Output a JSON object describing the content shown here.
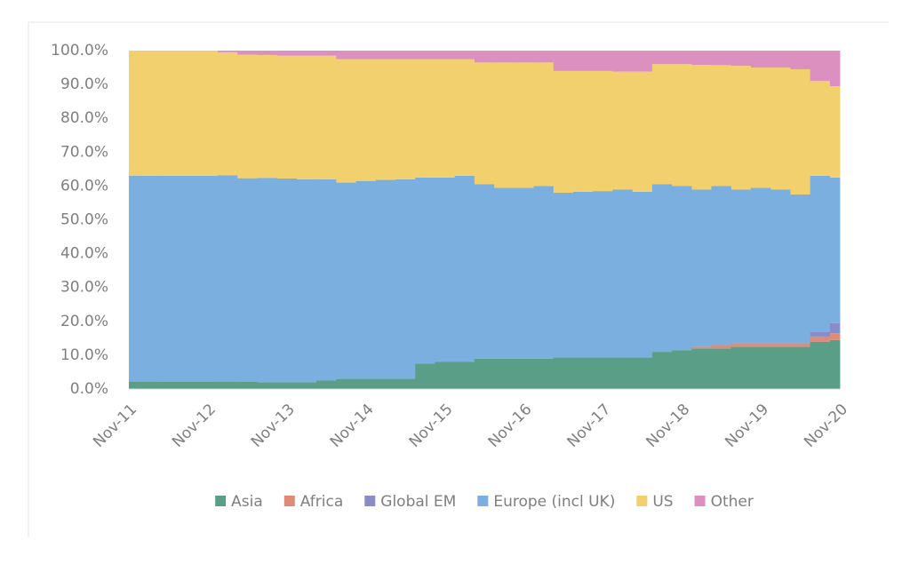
{
  "chart_data": {
    "type": "stacked-step-area",
    "categories": [
      "Nov-11",
      null,
      null,
      null,
      "Nov-12",
      null,
      null,
      null,
      "Nov-13",
      null,
      null,
      null,
      "Nov-14",
      null,
      null,
      null,
      "Nov-15",
      null,
      null,
      null,
      "Nov-16",
      null,
      null,
      null,
      "Nov-17",
      null,
      null,
      null,
      "Nov-18",
      null,
      null,
      null,
      "Nov-19",
      null,
      null,
      null,
      "Nov-20"
    ],
    "ylim": [
      0,
      100
    ],
    "yticks": [
      {
        "value": 0,
        "label": "0.0%"
      },
      {
        "value": 10,
        "label": "10.0%"
      },
      {
        "value": 20,
        "label": "20.0%"
      },
      {
        "value": 30,
        "label": "30.0%"
      },
      {
        "value": 40,
        "label": "40.0%"
      },
      {
        "value": 50,
        "label": "50.0%"
      },
      {
        "value": 60,
        "label": "60.0%"
      },
      {
        "value": 70,
        "label": "70.0%"
      },
      {
        "value": 80,
        "label": "80.0%"
      },
      {
        "value": 90,
        "label": "90.0%"
      },
      {
        "value": 100,
        "label": "100.0%"
      }
    ],
    "legend": "bottom",
    "series": [
      {
        "name": "Asia",
        "color": "#5a9e88",
        "values": [
          2.2,
          2.2,
          2.1,
          2.1,
          2.1,
          2.2,
          2.1,
          2.0,
          2.0,
          2.0,
          2.5,
          3.0,
          3.0,
          3.0,
          3.0,
          7.5,
          8.0,
          8.0,
          9.0,
          9.0,
          9.0,
          9.0,
          9.3,
          9.3,
          9.3,
          9.3,
          9.3,
          11.0,
          11.5,
          12.0,
          12.0,
          12.5,
          12.5,
          12.5,
          12.5,
          14.0,
          14.5
        ]
      },
      {
        "name": "Africa",
        "color": "#e08a78",
        "values": [
          0,
          0,
          0,
          0,
          0,
          0,
          0,
          0,
          0,
          0,
          0,
          0,
          0,
          0,
          0,
          0,
          0,
          0,
          0,
          0,
          0,
          0,
          0,
          0,
          0,
          0,
          0,
          0,
          0,
          0.5,
          1.0,
          1.0,
          1.0,
          1.0,
          1.0,
          1.5,
          2.0
        ]
      },
      {
        "name": "Global EM",
        "color": "#8a8cc8",
        "values": [
          0,
          0,
          0,
          0,
          0,
          0,
          0,
          0,
          0,
          0,
          0,
          0,
          0,
          0,
          0,
          0,
          0,
          0,
          0,
          0,
          0,
          0,
          0,
          0,
          0,
          0,
          0,
          0,
          0,
          0,
          0,
          0,
          0,
          0,
          0,
          1.5,
          3.0
        ]
      },
      {
        "name": "Europe (incl UK)",
        "color": "#7aafdf",
        "values": [
          60.8,
          60.8,
          60.9,
          60.9,
          60.9,
          61.0,
          60.2,
          60.4,
          60.2,
          60.0,
          59.5,
          58.0,
          58.5,
          58.8,
          59.0,
          55.0,
          54.5,
          55.0,
          51.5,
          50.5,
          50.5,
          51.0,
          48.7,
          49.0,
          49.2,
          49.7,
          49.0,
          49.5,
          48.5,
          46.5,
          47.0,
          45.5,
          46.0,
          45.5,
          44.0,
          46.0,
          43.0
        ]
      },
      {
        "name": "US",
        "color": "#f2d06e",
        "values": [
          37,
          37,
          37,
          37,
          37,
          36.3,
          36.5,
          36.3,
          36.3,
          36.5,
          36.5,
          36.5,
          36.0,
          35.7,
          35.5,
          35.0,
          35.0,
          34.5,
          36.0,
          37.0,
          37.0,
          36.5,
          36.0,
          35.7,
          35.5,
          34.8,
          35.5,
          35.5,
          36.0,
          36.8,
          35.7,
          36.5,
          35.5,
          36.0,
          37.0,
          28.0,
          27.0
        ]
      },
      {
        "name": "Other",
        "color": "#dc90c0",
        "values": [
          0,
          0,
          0,
          0,
          0,
          0.5,
          1.2,
          1.3,
          1.5,
          1.5,
          1.5,
          2.5,
          2.5,
          2.5,
          2.5,
          2.5,
          2.5,
          2.5,
          3.5,
          3.5,
          3.5,
          3.5,
          6.0,
          6.0,
          6.0,
          6.2,
          6.2,
          4.0,
          4.0,
          4.2,
          4.3,
          4.5,
          5.0,
          5.0,
          5.5,
          9.0,
          10.5
        ]
      }
    ]
  }
}
